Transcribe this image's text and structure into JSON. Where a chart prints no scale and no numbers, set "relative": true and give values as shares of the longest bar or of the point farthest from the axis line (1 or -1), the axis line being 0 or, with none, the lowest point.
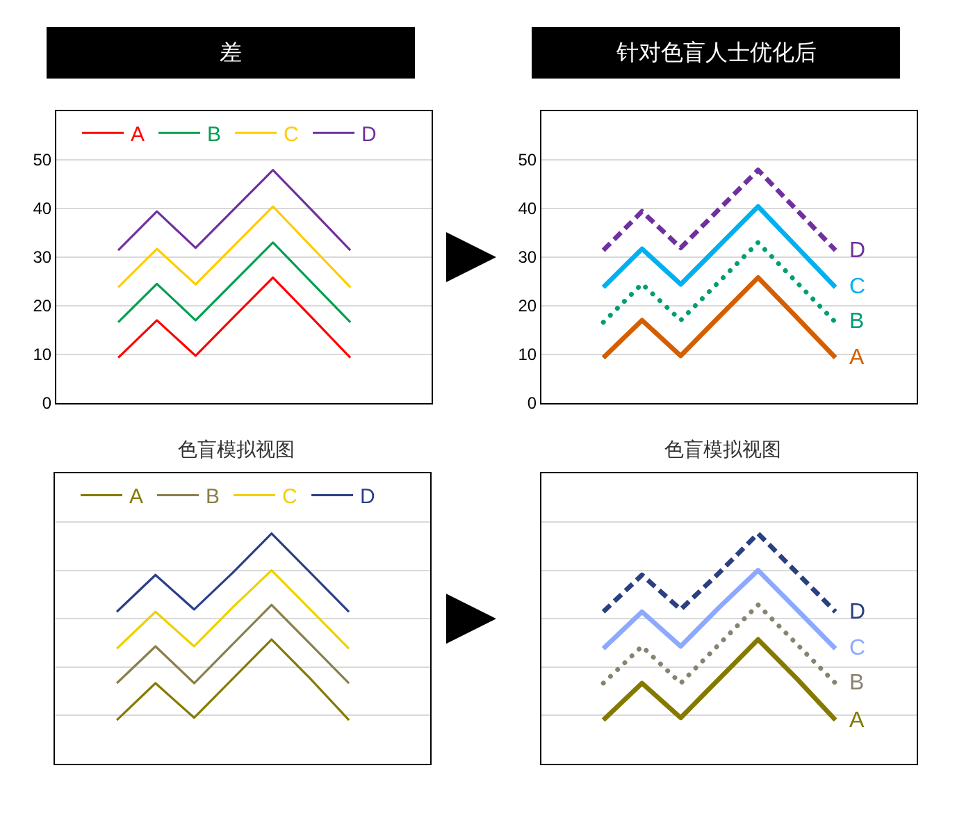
{
  "chart_data": [
    {
      "type": "line",
      "title": "差",
      "categories": [
        null,
        null,
        null,
        null,
        null,
        null,
        null
      ],
      "series": [
        {
          "name": "A",
          "color": "#ff0000",
          "values": [
            9.3,
            17,
            9.7,
            17.8,
            25.8,
            17.6,
            9.3
          ]
        },
        {
          "name": "B",
          "color": "#00a050",
          "values": [
            16.6,
            24.5,
            17,
            25,
            33,
            24.8,
            16.6
          ]
        },
        {
          "name": "C",
          "color": "#ffcc00",
          "values": [
            23.8,
            31.7,
            24.4,
            32.4,
            40.4,
            32.1,
            23.8
          ]
        },
        {
          "name": "D",
          "color": "#7030a0",
          "values": [
            31.4,
            39.4,
            31.9,
            39.9,
            47.9,
            39.7,
            31.4
          ]
        }
      ],
      "ylim": [
        0,
        60
      ],
      "yticks": [
        0,
        10,
        20,
        30,
        40,
        50
      ],
      "grid": "y",
      "legend": "top"
    },
    {
      "type": "line",
      "title": "针对色盲人士优化后",
      "categories": [
        null,
        null,
        null,
        null,
        null,
        null,
        null
      ],
      "series": [
        {
          "name": "A",
          "color": "#d55e00",
          "line_style": "solid",
          "values": [
            9.3,
            17,
            9.7,
            17.8,
            25.8,
            17.6,
            9.3
          ]
        },
        {
          "name": "B",
          "color": "#009e73",
          "line_style": "dotted",
          "values": [
            16.6,
            24.5,
            17,
            25,
            33,
            24.8,
            16.6
          ]
        },
        {
          "name": "C",
          "color": "#00b0f0",
          "line_style": "solid",
          "values": [
            23.8,
            31.7,
            24.4,
            32.4,
            40.4,
            32.1,
            23.8
          ]
        },
        {
          "name": "D",
          "color": "#7030a0",
          "line_style": "dashed",
          "values": [
            31.4,
            39.4,
            31.9,
            39.9,
            47.9,
            39.7,
            31.4
          ]
        }
      ],
      "ylim": [
        0,
        60
      ],
      "yticks": [
        0,
        10,
        20,
        30,
        40,
        50
      ],
      "grid": "y",
      "legend": false
    },
    {
      "type": "line",
      "title": "色盲模拟视图",
      "relative": true,
      "categories": [
        null,
        null,
        null,
        null,
        null,
        null,
        null
      ],
      "series": [
        {
          "name": "A",
          "color": "#857a00",
          "values": [
            0.19,
            0.35,
            0.2,
            0.37,
            0.54,
            0.37,
            0.19
          ]
        },
        {
          "name": "B",
          "color": "#8a7f4a",
          "values": [
            0.35,
            0.51,
            0.35,
            0.52,
            0.69,
            0.52,
            0.35
          ]
        },
        {
          "name": "C",
          "color": "#f0d000",
          "values": [
            0.5,
            0.66,
            0.51,
            0.68,
            0.84,
            0.67,
            0.5
          ]
        },
        {
          "name": "D",
          "color": "#2a3f8a",
          "values": [
            0.66,
            0.82,
            0.67,
            0.83,
            1,
            0.83,
            0.66
          ]
        }
      ],
      "grid": "y",
      "legend": "top"
    },
    {
      "type": "line",
      "title": "色盲模拟视图",
      "relative": true,
      "categories": [
        null,
        null,
        null,
        null,
        null,
        null,
        null
      ],
      "series": [
        {
          "name": "A",
          "color": "#857a00",
          "line_style": "solid",
          "values": [
            0.19,
            0.35,
            0.2,
            0.37,
            0.54,
            0.37,
            0.19
          ]
        },
        {
          "name": "B",
          "color": "#8a8270",
          "line_style": "dotted",
          "values": [
            0.35,
            0.51,
            0.35,
            0.52,
            0.69,
            0.52,
            0.35
          ]
        },
        {
          "name": "C",
          "color": "#8ca8ff",
          "line_style": "solid",
          "values": [
            0.5,
            0.66,
            0.51,
            0.68,
            0.84,
            0.67,
            0.5
          ]
        },
        {
          "name": "D",
          "color": "#2a4080",
          "line_style": "dashed",
          "values": [
            0.66,
            0.82,
            0.67,
            0.83,
            1,
            0.83,
            0.66
          ]
        }
      ],
      "grid": "y",
      "legend": false
    }
  ]
}
